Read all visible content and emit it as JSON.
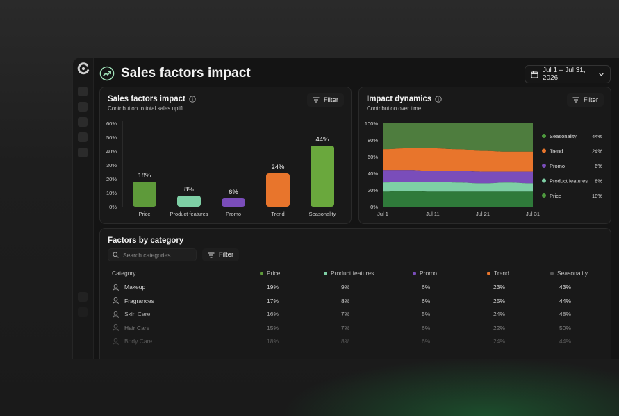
{
  "page": {
    "title": "Sales factors impact"
  },
  "date_range": {
    "label": "Jul 1 – Jul 31, 2026"
  },
  "colors": {
    "price": "#5e9a3a",
    "product_features": "#7ecfa5",
    "promo": "#7a4dba",
    "trend": "#e8752c",
    "seasonality": "#4e7d3e"
  },
  "bar_card": {
    "title": "Sales factors impact",
    "subtitle": "Contribution to total sales uplift",
    "filter_label": "Filter",
    "chart_data": {
      "type": "bar",
      "categories": [
        "Price",
        "Product features",
        "Promo",
        "Trend",
        "Seasonality"
      ],
      "values": [
        18,
        8,
        6,
        24,
        44
      ],
      "value_labels": [
        "18%",
        "8%",
        "6%",
        "24%",
        "44%"
      ],
      "colors": [
        "#5e9a3a",
        "#7ecfa5",
        "#7a4dba",
        "#e8752c",
        "#6aa83d"
      ],
      "ylim": [
        0,
        60
      ],
      "y_ticks": [
        "0%",
        "10%",
        "20%",
        "30%",
        "40%",
        "50%",
        "60%"
      ],
      "title": "",
      "xlabel": "",
      "ylabel": ""
    }
  },
  "area_card": {
    "title": "Impact dynamics",
    "subtitle": "Contribution over time",
    "filter_label": "Filter",
    "chart_data": {
      "type": "area",
      "stacked": true,
      "normalized": true,
      "x_ticks": [
        "Jul 1",
        "Jul 11",
        "Jul 21",
        "Jul 31"
      ],
      "y_ticks": [
        "0%",
        "20%",
        "40%",
        "60%",
        "80%",
        "100%"
      ],
      "ylim": [
        0,
        100
      ],
      "x": [
        1,
        6,
        11,
        16,
        21,
        26,
        31
      ],
      "series": [
        {
          "name": "Price",
          "color": "#2f7a3a",
          "values": [
            18,
            19,
            18,
            18,
            18,
            18,
            18
          ]
        },
        {
          "name": "Product features",
          "color": "#7ecfa5",
          "values": [
            11,
            11,
            12,
            11,
            10,
            11,
            10
          ]
        },
        {
          "name": "Promo",
          "color": "#7a4dba",
          "values": [
            15,
            14,
            13,
            14,
            14,
            13,
            14
          ]
        },
        {
          "name": "Trend",
          "color": "#e8752c",
          "values": [
            25,
            26,
            27,
            26,
            25,
            24,
            24
          ]
        },
        {
          "name": "Seasonality",
          "color": "#4e7d3e",
          "values": [
            31,
            30,
            30,
            31,
            33,
            34,
            34
          ]
        }
      ],
      "legend": [
        {
          "name": "Seasonality",
          "value": "44%",
          "color": "#4e9a3e"
        },
        {
          "name": "Trend",
          "value": "24%",
          "color": "#e8752c"
        },
        {
          "name": "Promo",
          "value": "6%",
          "color": "#7a4dba"
        },
        {
          "name": "Product features",
          "value": "8%",
          "color": "#7ecfa5"
        },
        {
          "name": "Price",
          "value": "18%",
          "color": "#4e9a3e"
        }
      ],
      "legend_position": "right",
      "title": "",
      "xlabel": "",
      "ylabel": ""
    }
  },
  "table_card": {
    "title": "Factors by category",
    "search_placeholder": "Search categories",
    "filter_label": "Filter",
    "columns": [
      {
        "label": "Category"
      },
      {
        "label": "Price",
        "color": "#5e9a3a"
      },
      {
        "label": "Product features",
        "color": "#7ecfa5"
      },
      {
        "label": "Promo",
        "color": "#7a4dba"
      },
      {
        "label": "Trend",
        "color": "#e8752c"
      },
      {
        "label": "Seasonality",
        "color": "#555555"
      }
    ],
    "rows": [
      {
        "icon": "makeup-icon",
        "category": "Makeup",
        "values": [
          "19%",
          "9%",
          "6%",
          "23%",
          "43%"
        ]
      },
      {
        "icon": "fragrance-icon",
        "category": "Fragrances",
        "values": [
          "17%",
          "8%",
          "6%",
          "25%",
          "44%"
        ]
      },
      {
        "icon": "drop-icon",
        "category": "Skin Care",
        "values": [
          "16%",
          "7%",
          "5%",
          "24%",
          "48%"
        ]
      },
      {
        "icon": "hair-care-icon",
        "category": "Hair Care",
        "values": [
          "15%",
          "7%",
          "6%",
          "22%",
          "50%"
        ]
      },
      {
        "icon": "body-care-icon",
        "category": "Body Care",
        "values": [
          "18%",
          "8%",
          "6%",
          "24%",
          "44%"
        ]
      }
    ]
  }
}
